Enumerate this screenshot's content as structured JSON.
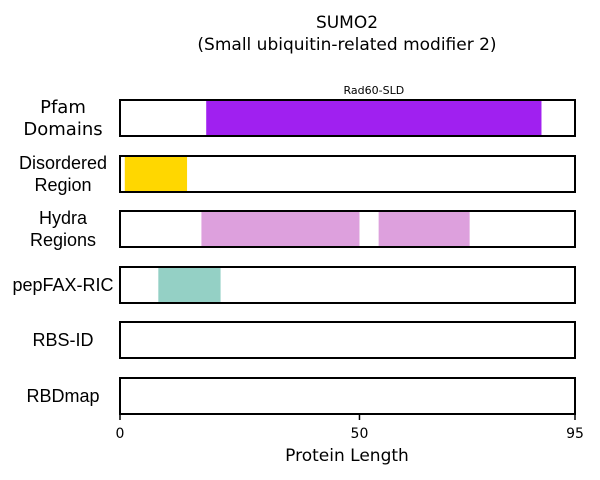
{
  "chart_data": {
    "type": "bar",
    "title": "SUMO2",
    "subtitle": "(Small ubiquitin-related modifier 2)",
    "xlabel": "Protein Length",
    "xlim": [
      0,
      95
    ],
    "xticks": [
      0,
      50,
      95
    ],
    "rows": [
      {
        "label_lines": [
          "Pfam",
          "Domains"
        ],
        "segments": [
          {
            "start": 18,
            "end": 88,
            "color": "#A020F0",
            "label": "Rad60-SLD"
          }
        ]
      },
      {
        "label_lines": [
          "Disordered",
          "Region"
        ],
        "segments": [
          {
            "start": 1,
            "end": 14,
            "color": "#FFD700"
          }
        ]
      },
      {
        "label_lines": [
          "Hydra",
          "Regions"
        ],
        "segments": [
          {
            "start": 17,
            "end": 50,
            "color": "#DDA0DD"
          },
          {
            "start": 54,
            "end": 73,
            "color": "#DDA0DD"
          }
        ]
      },
      {
        "label_lines": [
          "pepFAX-RIC"
        ],
        "segments": [
          {
            "start": 8,
            "end": 21,
            "color": "#94D0C5"
          }
        ]
      },
      {
        "label_lines": [
          "RBS-ID"
        ],
        "segments": []
      },
      {
        "label_lines": [
          "RBDmap"
        ],
        "segments": []
      }
    ]
  }
}
